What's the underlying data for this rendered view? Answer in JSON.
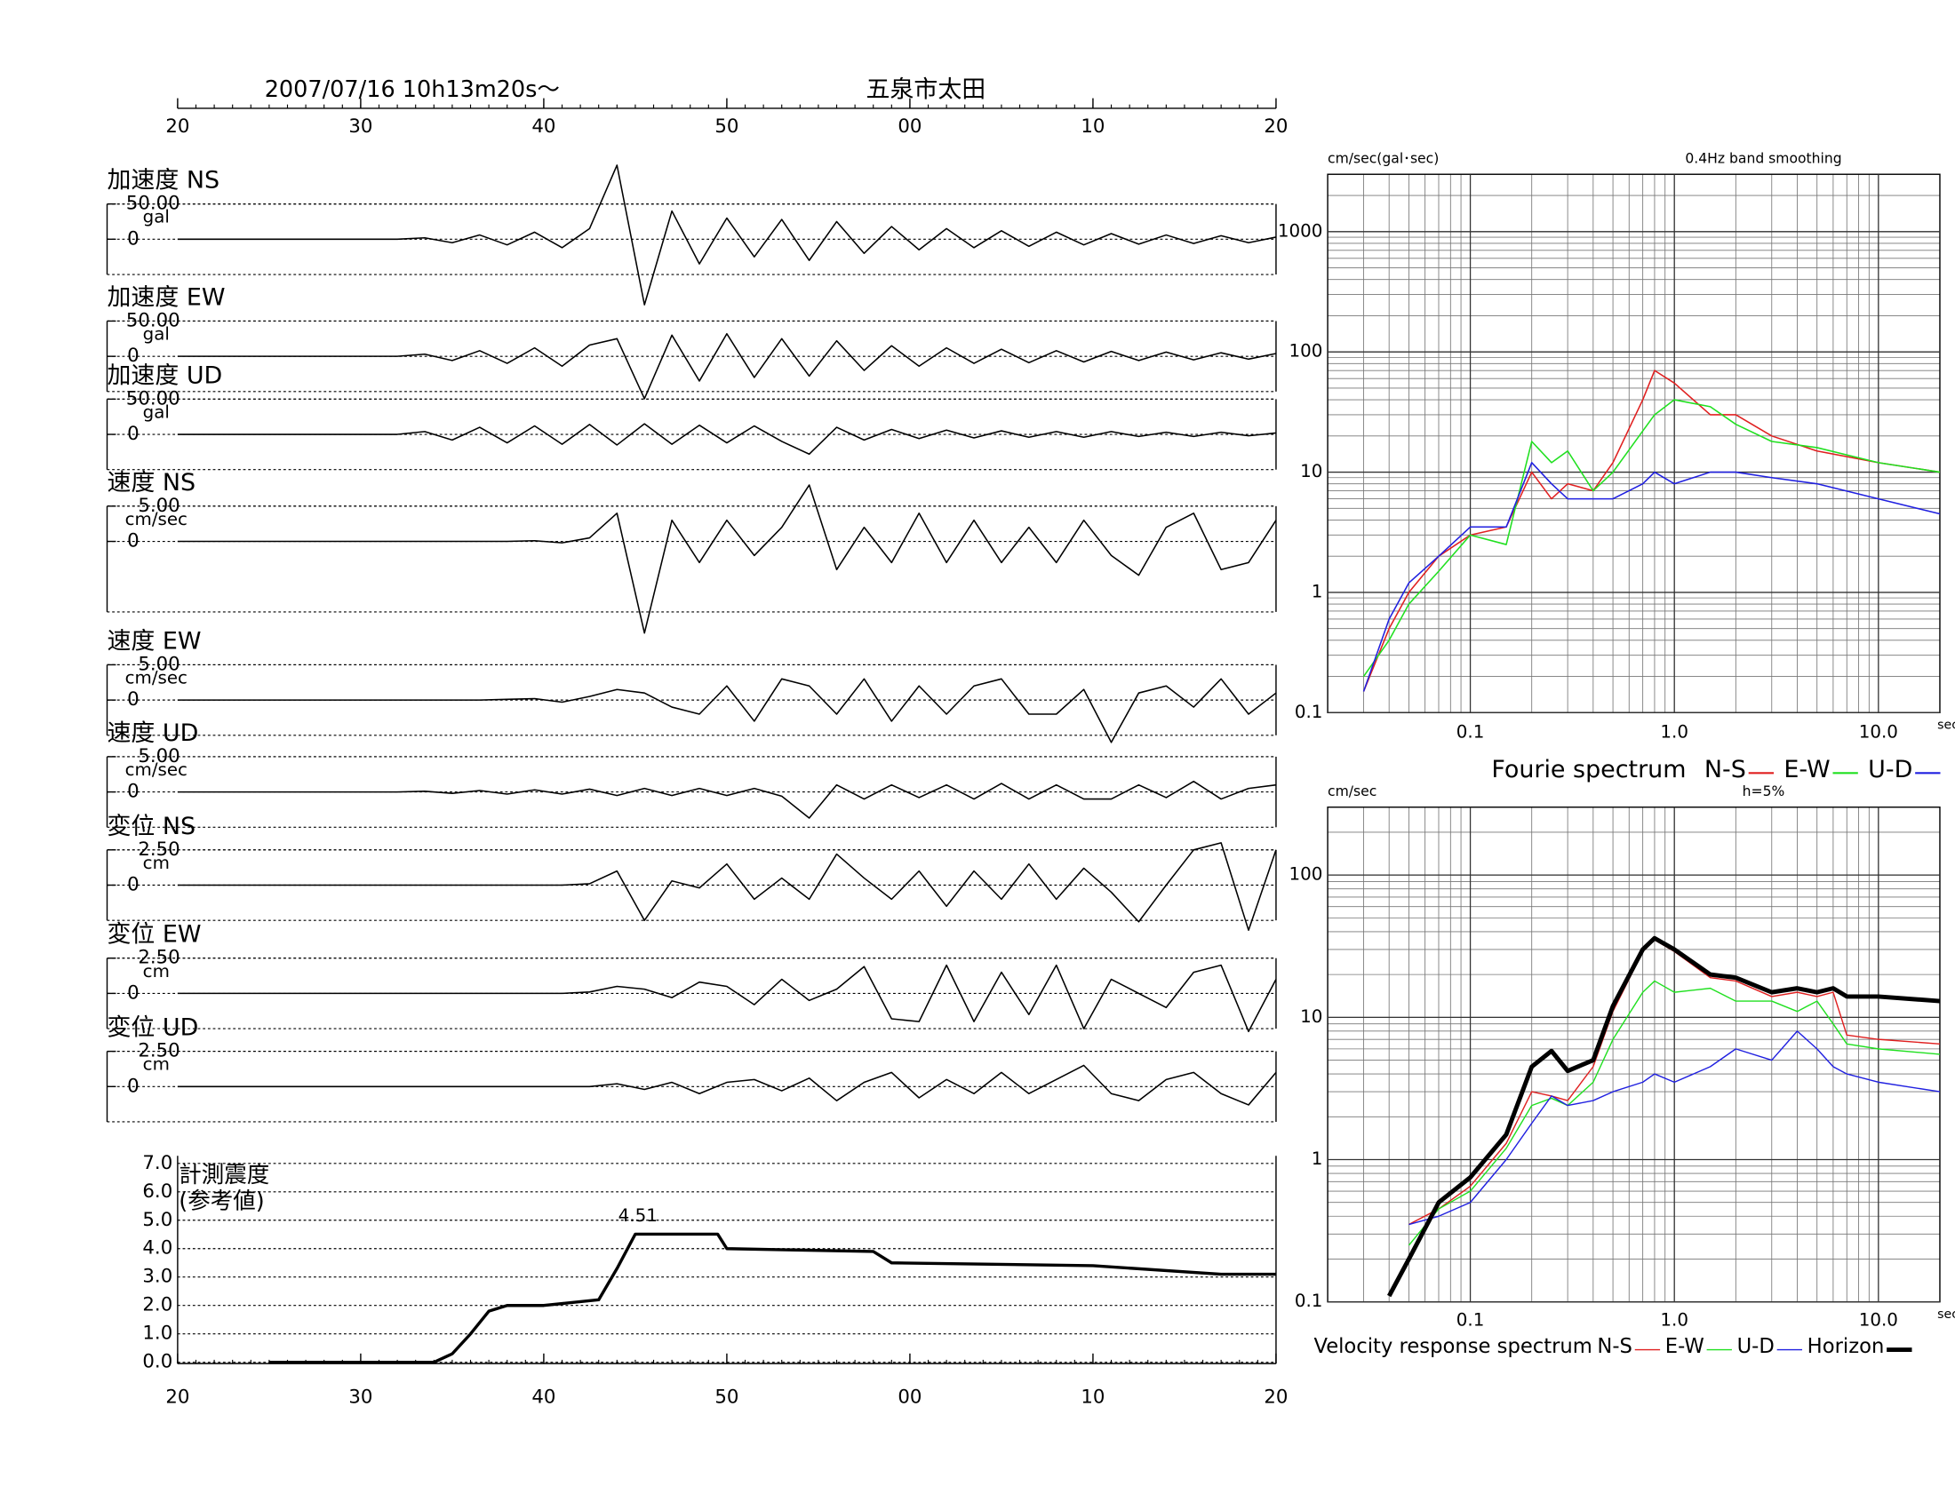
{
  "chart_data": [
    {
      "type": "waveform",
      "title": "2007/07/16  10h13m20s〜",
      "subtitle": "五泉市太田",
      "xlim": [
        20,
        80
      ],
      "xticks": [
        20,
        30,
        40,
        50,
        {
          "value": 60,
          "label": "00"
        },
        {
          "value": 70,
          "label": "10"
        },
        {
          "value": 80,
          "label": "20"
        }
      ],
      "x": [
        20,
        21.5,
        23,
        24.5,
        26,
        27.5,
        29,
        30.5,
        32,
        33.5,
        35,
        36.5,
        38,
        39.5,
        41,
        42.5,
        44,
        45.5,
        47,
        48.5,
        50,
        51.5,
        53,
        54.5,
        56,
        57.5,
        59,
        60.5,
        62,
        63.5,
        65,
        66.5,
        68,
        69.5,
        71,
        72.5,
        74,
        75.5,
        77,
        78.5,
        80
      ],
      "color": "#000000",
      "series": [
        {
          "name": "加速度 NS",
          "unit": "gal",
          "ylim": [
            -50,
            50
          ],
          "yticks": [
            {
              "value": 50,
              "label": "50.00"
            },
            0
          ],
          "values": [
            0,
            0,
            0,
            0,
            0,
            0,
            0,
            0,
            0,
            2,
            -5,
            6,
            -8,
            10,
            -12,
            15,
            105,
            -93,
            40,
            -35,
            30,
            -25,
            28,
            -30,
            25,
            -20,
            18,
            -15,
            15,
            -12,
            12,
            -10,
            10,
            -8,
            8,
            -7,
            6,
            -6,
            5,
            -5,
            3
          ]
        },
        {
          "name": "加速度 EW",
          "unit": "gal",
          "ylim": [
            -50,
            50
          ],
          "yticks": [
            {
              "value": 50,
              "label": "50.00"
            },
            0
          ],
          "values": [
            0,
            0,
            0,
            0,
            0,
            0,
            0,
            0,
            0,
            3,
            -6,
            8,
            -10,
            12,
            -14,
            16,
            25,
            -60,
            30,
            -35,
            32,
            -30,
            25,
            -28,
            22,
            -20,
            15,
            -14,
            12,
            -10,
            10,
            -9,
            8,
            -8,
            7,
            -6,
            6,
            -5,
            5,
            -4,
            4
          ]
        },
        {
          "name": "加速度 UD",
          "unit": "gal",
          "ylim": [
            -50,
            50
          ],
          "yticks": [
            {
              "value": 50,
              "label": "50.00"
            },
            0
          ],
          "values": [
            0,
            0,
            0,
            0,
            0,
            0,
            0,
            0,
            0,
            4,
            -8,
            10,
            -12,
            12,
            -14,
            14,
            -15,
            15,
            -14,
            13,
            -12,
            12,
            -10,
            -28,
            10,
            -8,
            7,
            -6,
            6,
            -5,
            5,
            -4,
            4,
            -4,
            4,
            -3,
            3,
            -3,
            3,
            -2,
            2
          ]
        },
        {
          "name": "速度 NS",
          "unit": "cm/sec",
          "ylim": [
            -10,
            5
          ],
          "yticks": [
            {
              "value": 5,
              "label": "5.00"
            },
            0
          ],
          "values": [
            0,
            0,
            0,
            0,
            0,
            0,
            0,
            0,
            0,
            0,
            0,
            0,
            0,
            0.1,
            -0.2,
            0.5,
            4,
            -13,
            3,
            -3,
            3,
            -2,
            2,
            8,
            -4,
            2,
            -3,
            4,
            -3,
            3,
            -3,
            2,
            -3,
            3,
            -2,
            -4.8,
            2,
            4,
            -4,
            -3,
            3
          ]
        },
        {
          "name": "速度 EW",
          "unit": "cm/sec",
          "ylim": [
            -5,
            5
          ],
          "yticks": [
            {
              "value": 5,
              "label": "5.00"
            },
            0
          ],
          "values": [
            0,
            0,
            0,
            0,
            0,
            0,
            0,
            0,
            0,
            0,
            0,
            0,
            0.1,
            0.2,
            -0.3,
            0.5,
            1.5,
            1,
            -1,
            -2,
            2,
            -3,
            3,
            2,
            -2,
            3,
            -3,
            2,
            -2,
            2,
            3,
            -2,
            -2,
            1.5,
            -6,
            1,
            2,
            -1,
            3,
            -2,
            1
          ]
        },
        {
          "name": "速度 UD",
          "unit": "cm/sec",
          "ylim": [
            -5,
            5
          ],
          "yticks": [
            {
              "value": 5,
              "label": "5.00"
            },
            0
          ],
          "values": [
            0,
            0,
            0,
            0,
            0,
            0,
            0,
            0,
            0,
            0.1,
            -0.2,
            0.2,
            -0.3,
            0.3,
            -0.3,
            0.4,
            -0.5,
            0.5,
            -0.5,
            0.5,
            -0.5,
            0.5,
            -0.6,
            -3.7,
            1,
            -1,
            1,
            -0.8,
            1,
            -1,
            1.2,
            -1,
            1,
            -1,
            -1,
            1,
            -0.8,
            1.5,
            -1,
            0.5,
            1
          ]
        },
        {
          "name": "変位 NS",
          "unit": "cm",
          "ylim": [
            -2.5,
            2.5
          ],
          "yticks": [
            {
              "value": 2.5,
              "label": "2.50"
            },
            0
          ],
          "values": [
            0,
            0,
            0,
            0,
            0,
            0,
            0,
            0,
            0,
            0,
            0,
            0,
            0,
            0,
            0,
            0.1,
            1,
            -2.5,
            0.3,
            -0.2,
            1.5,
            -1,
            0.5,
            -1,
            2.2,
            0.5,
            -1,
            1,
            -1.5,
            1,
            -1,
            1.5,
            -1,
            1.2,
            -0.5,
            -2.6,
            0,
            2.5,
            3,
            -3.2,
            2.5
          ]
        },
        {
          "name": "変位 EW",
          "unit": "cm",
          "ylim": [
            -2.5,
            2.5
          ],
          "yticks": [
            {
              "value": 2.5,
              "label": "2.50"
            },
            0
          ],
          "values": [
            0,
            0,
            0,
            0,
            0,
            0,
            0,
            0,
            0,
            0,
            0,
            0,
            0,
            0,
            0,
            0.1,
            0.5,
            0.3,
            -0.3,
            0.8,
            0.5,
            -0.8,
            1,
            -0.5,
            0.3,
            1.9,
            -1.8,
            -2,
            2,
            -2,
            1.5,
            -1.5,
            2,
            -2.5,
            1,
            0,
            -1,
            1.5,
            2,
            -2.7,
            1
          ]
        },
        {
          "name": "変位 UD",
          "unit": "cm",
          "ylim": [
            -2.5,
            2.5
          ],
          "yticks": [
            {
              "value": 2.5,
              "label": "2.50"
            },
            0
          ],
          "values": [
            0,
            0,
            0,
            0,
            0,
            0,
            0,
            0,
            0,
            0,
            0,
            0,
            0,
            0,
            0,
            0,
            0.2,
            -0.2,
            0.3,
            -0.5,
            0.3,
            0.5,
            -0.3,
            0.6,
            -1,
            0.3,
            1,
            -0.8,
            0.5,
            -0.5,
            1,
            -0.5,
            0.5,
            1.5,
            -0.5,
            -1,
            0.5,
            1,
            -0.5,
            -1.3,
            1
          ]
        }
      ]
    },
    {
      "type": "line",
      "ylabel": [
        "計測震度",
        "(参考値)"
      ],
      "color": "#000000",
      "xlim": [
        20,
        80
      ],
      "xticks": [
        20,
        30,
        40,
        50,
        {
          "value": 60,
          "label": "00"
        },
        {
          "value": 70,
          "label": "10"
        },
        {
          "value": 80,
          "label": "20"
        }
      ],
      "ylim": [
        0,
        7
      ],
      "yticks": [
        {
          "value": 0,
          "label": "0.0"
        },
        {
          "value": 1,
          "label": "1.0"
        },
        {
          "value": 2,
          "label": "2.0"
        },
        {
          "value": 3,
          "label": "3.0"
        },
        {
          "value": 4,
          "label": "4.0"
        },
        {
          "value": 5,
          "label": "5.0"
        },
        {
          "value": 6,
          "label": "6.0"
        },
        {
          "value": 7,
          "label": "7.0"
        }
      ],
      "grid": true,
      "x": [
        25,
        34,
        35,
        36,
        37,
        38,
        40,
        43,
        44,
        45,
        45.5,
        49.5,
        50,
        58,
        59,
        70,
        77,
        80
      ],
      "values": [
        0,
        0,
        0.3,
        1,
        1.8,
        2,
        2,
        2.2,
        3.3,
        4.51,
        4.51,
        4.51,
        4,
        3.9,
        3.5,
        3.4,
        3.1,
        3.1
      ],
      "peak_index": 9
    },
    {
      "type": "loglog",
      "title": "Fourie spectrum",
      "ylabel": "cm/sec(gal･sec)",
      "note": "0.4Hz band smoothing",
      "xlabel": "sec",
      "xscale": "log",
      "yscale": "log",
      "minor_grid": true,
      "xlim": [
        0.02,
        20
      ],
      "ylim": [
        0.1,
        3000
      ],
      "xticks": [
        0.1,
        {
          "value": 1,
          "label": "1.0"
        },
        {
          "value": 10,
          "label": "10.0"
        }
      ],
      "yticks": [
        0.1,
        1,
        10,
        100,
        1000
      ],
      "x": [
        0.03,
        0.04,
        0.05,
        0.07,
        0.1,
        0.15,
        0.2,
        0.25,
        0.3,
        0.4,
        0.5,
        0.7,
        0.8,
        1.0,
        1.5,
        2,
        3,
        5,
        10,
        20
      ],
      "series": [
        {
          "name": "N-S",
          "color": "#e02020",
          "values": [
            0.15,
            0.5,
            1,
            2,
            3,
            3.5,
            10,
            6,
            8,
            7,
            12,
            40,
            70,
            55,
            30,
            30,
            20,
            15,
            12,
            10
          ]
        },
        {
          "name": "E-W",
          "color": "#20e020",
          "values": [
            0.2,
            0.4,
            0.8,
            1.5,
            3,
            2.5,
            18,
            12,
            15,
            7,
            10,
            22,
            30,
            40,
            35,
            25,
            18,
            16,
            12,
            10
          ]
        },
        {
          "name": "U-D",
          "color": "#2020e0",
          "values": [
            0.15,
            0.6,
            1.2,
            2,
            3.5,
            3.5,
            12,
            8,
            6,
            6,
            6,
            8,
            10,
            8,
            10,
            10,
            9,
            8,
            6,
            4.5
          ]
        }
      ]
    },
    {
      "type": "loglog",
      "title": "Velocity response spectrum",
      "ylabel": "cm/sec",
      "note": "h=5%",
      "xlabel": "sec",
      "xscale": "log",
      "yscale": "log",
      "minor_grid": true,
      "xlim": [
        0.02,
        20
      ],
      "ylim": [
        0.1,
        300
      ],
      "xticks": [
        0.1,
        {
          "value": 1,
          "label": "1.0"
        },
        {
          "value": 10,
          "label": "10.0"
        }
      ],
      "yticks": [
        0.1,
        1,
        10,
        100
      ],
      "x": [
        0.04,
        0.05,
        0.07,
        0.1,
        0.15,
        0.2,
        0.25,
        0.3,
        0.4,
        0.5,
        0.7,
        0.8,
        1.0,
        1.5,
        2,
        3,
        4,
        5,
        6,
        7,
        10,
        20
      ],
      "series": [
        {
          "name": "N-S",
          "color": "#e02020",
          "line_width": 1,
          "values": [
            null,
            0.35,
            0.45,
            0.65,
            1.3,
            3,
            2.8,
            2.6,
            4.5,
            11,
            29,
            35,
            29,
            19,
            18,
            14,
            15,
            14,
            15,
            7.5,
            7,
            6.5
          ]
        },
        {
          "name": "E-W",
          "color": "#20e020",
          "line_width": 1,
          "values": [
            null,
            0.25,
            0.45,
            0.6,
            1.2,
            2.4,
            2.7,
            2.4,
            3.5,
            7,
            15,
            18,
            15,
            16,
            13,
            13,
            11,
            13,
            9,
            6.5,
            6,
            5.5
          ]
        },
        {
          "name": "U-D",
          "color": "#2020e0",
          "line_width": 1,
          "values": [
            null,
            0.35,
            0.4,
            0.5,
            1,
            1.8,
            2.8,
            2.4,
            2.6,
            3,
            3.5,
            4,
            3.5,
            4.5,
            6,
            5,
            8,
            6,
            4.5,
            4,
            3.5,
            3
          ]
        },
        {
          "name": "Horizon",
          "color": "#000000",
          "line_width": 3.5,
          "values": [
            0.11,
            0.2,
            0.5,
            0.75,
            1.5,
            4.5,
            5.8,
            4.2,
            5,
            12,
            30,
            36,
            30,
            20,
            19,
            15,
            16,
            15,
            16,
            14,
            14,
            13
          ]
        }
      ]
    }
  ]
}
